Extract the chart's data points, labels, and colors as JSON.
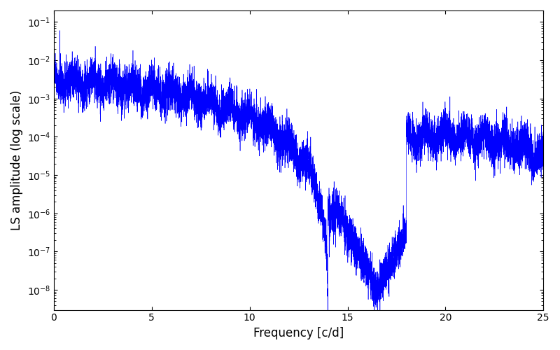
{
  "xlabel": "Frequency [c/d]",
  "ylabel": "LS amplitude (log scale)",
  "line_color": "blue",
  "xlim": [
    0,
    25
  ],
  "ylim": [
    3e-09,
    0.2
  ],
  "figsize": [
    8.0,
    5.0
  ],
  "dpi": 100
}
